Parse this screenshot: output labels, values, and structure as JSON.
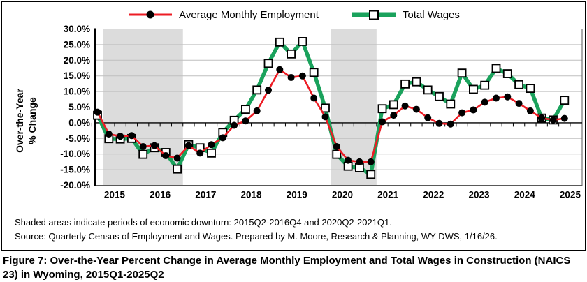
{
  "legend": {
    "series1_label": "Average Monthly Employment",
    "series2_label": "Total Wages"
  },
  "y_axis_title": {
    "line1": "Over-the-Year",
    "line2": "% Change"
  },
  "footnote": {
    "line1": "Shaded areas indicate periods of economic downturn: 2015Q2-2016Q4 and 2020Q2-2021Q1.",
    "line2": "Source: Quarterly Census of Employment and Wages. Prepared by M. Moore, Research & Planning, WY DWS, 1/16/26."
  },
  "caption": "Figure 7: Over-the-Year Percent Change in Average Monthly Employment and Total Wages in Construction (NAICS 23) in Wyoming, 2015Q1-2025Q2",
  "chart_data": {
    "type": "line",
    "title": "Over-the-Year Percent Change in Average Monthly Employment and Total Wages in Construction (NAICS 23) in Wyoming, 2015Q1-2025Q2",
    "xlabel": "",
    "ylabel": "Over-the-Year % Change",
    "ylim": [
      -20,
      30
    ],
    "y_tick_step": 5,
    "y_tick_labels": [
      "30.0%",
      "25.0%",
      "20.0%",
      "15.0%",
      "10.0%",
      "5.0%",
      "0.0%",
      "-5.0%",
      "-10.0%",
      "-15.0%",
      "-20.0%"
    ],
    "year_tick_labels": [
      "2015",
      "2016",
      "2017",
      "2018",
      "2019",
      "2020",
      "2021",
      "2022",
      "2023",
      "2024",
      "2025"
    ],
    "x": [
      "2015Q1",
      "2015Q2",
      "2015Q3",
      "2015Q4",
      "2016Q1",
      "2016Q2",
      "2016Q3",
      "2016Q4",
      "2017Q1",
      "2017Q2",
      "2017Q3",
      "2017Q4",
      "2018Q1",
      "2018Q2",
      "2018Q3",
      "2018Q4",
      "2019Q1",
      "2019Q2",
      "2019Q3",
      "2019Q4",
      "2020Q1",
      "2020Q2",
      "2020Q3",
      "2020Q4",
      "2021Q1",
      "2021Q2",
      "2021Q3",
      "2021Q4",
      "2022Q1",
      "2022Q2",
      "2022Q3",
      "2022Q4",
      "2023Q1",
      "2023Q2",
      "2023Q3",
      "2023Q4",
      "2024Q1",
      "2024Q2",
      "2024Q3",
      "2024Q4",
      "2025Q1",
      "2025Q2"
    ],
    "series": [
      {
        "name": "Average Monthly Employment",
        "color": "#ED1C24",
        "marker": "circle",
        "marker_color": "#000000",
        "values": [
          3.4,
          -3.6,
          -4.3,
          -4.1,
          -7.6,
          -7.3,
          -10.5,
          -11.3,
          -7.3,
          -9.7,
          -7.0,
          -4.8,
          -0.8,
          0.6,
          3.8,
          10.4,
          17.0,
          14.5,
          15.0,
          7.9,
          1.9,
          -7.6,
          -12.0,
          -12.5,
          -12.5,
          0.3,
          2.4,
          5.4,
          4.3,
          1.6,
          -0.2,
          -0.4,
          3.2,
          4.1,
          6.6,
          7.9,
          8.3,
          6.2,
          3.8,
          1.5,
          0.9,
          1.4
        ]
      },
      {
        "name": "Total Wages",
        "color": "#1AA25C",
        "marker": "square",
        "marker_color": "#FFFFFF",
        "values": [
          2.4,
          -5.1,
          -5.2,
          -5.0,
          -10.1,
          -8.0,
          -9.5,
          -14.8,
          -7.0,
          -8.0,
          -9.7,
          -3.1,
          0.8,
          4.3,
          10.5,
          19.0,
          25.8,
          22.0,
          26.0,
          16.1,
          4.7,
          -10.1,
          -13.9,
          -14.4,
          -16.5,
          4.5,
          5.8,
          12.4,
          13.1,
          10.5,
          8.4,
          6.0,
          15.9,
          10.7,
          12.0,
          17.4,
          15.7,
          12.2,
          11.0,
          1.5,
          0.9,
          7.2
        ]
      }
    ],
    "shaded_regions": [
      {
        "label": "2015Q2-2016Q4",
        "start_index": 1,
        "end_index": 7
      },
      {
        "label": "2020Q2-2021Q1",
        "start_index": 21,
        "end_index": 24
      }
    ],
    "legend_position": "top",
    "grid": true,
    "colors": {
      "downturn_shading": "#DCDCDC",
      "gridline": "#BFBFBF",
      "axis": "#000000",
      "plot_border": "#595959"
    }
  }
}
